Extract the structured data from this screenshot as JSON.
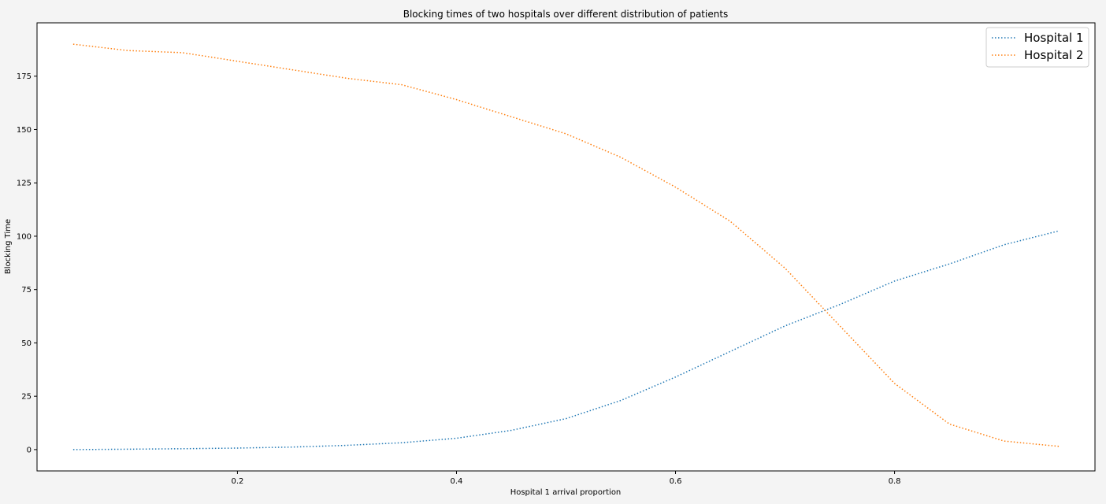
{
  "chart_data": {
    "type": "line",
    "title": "Blocking times of two hospitals over different distribution of patients",
    "xlabel": "Hospital 1 arrival proportion",
    "ylabel": "Blocking Time",
    "xlim": [
      0.017,
      0.983
    ],
    "ylim": [
      -10,
      200
    ],
    "xticks": [
      0.2,
      0.4,
      0.6,
      0.8
    ],
    "xtick_labels": [
      "0.2",
      "0.4",
      "0.6",
      "0.8"
    ],
    "yticks": [
      0,
      25,
      50,
      75,
      100,
      125,
      150,
      175
    ],
    "ytick_labels": [
      "0",
      "25",
      "50",
      "75",
      "100",
      "125",
      "150",
      "175"
    ],
    "legend_position": "top-right",
    "grid": false,
    "x": [
      0.05,
      0.1,
      0.15,
      0.2,
      0.25,
      0.3,
      0.35,
      0.4,
      0.45,
      0.5,
      0.55,
      0.6,
      0.65,
      0.7,
      0.75,
      0.8,
      0.85,
      0.9,
      0.95
    ],
    "series": [
      {
        "name": "Hospital 1",
        "color": "#1f77b4",
        "values": [
          0,
          0.2,
          0.4,
          0.7,
          1.2,
          2,
          3.2,
          5.3,
          9,
          14.5,
          23,
          34,
          46,
          58,
          68,
          79,
          87,
          96,
          102.5
        ]
      },
      {
        "name": "Hospital 2",
        "color": "#ff7f0e",
        "values": [
          190,
          187,
          186,
          182,
          178,
          174,
          171,
          164,
          156,
          148,
          137,
          123,
          107,
          85,
          58,
          31,
          12,
          4,
          1.5
        ]
      }
    ]
  }
}
